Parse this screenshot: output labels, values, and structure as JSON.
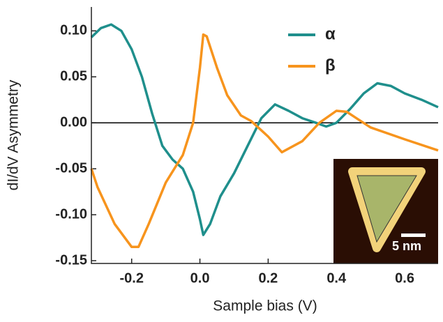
{
  "chart_data": {
    "type": "line",
    "x_label": "Sample bias (V)",
    "y_label": "dI/dV Asymmetry",
    "xlim": [
      -0.318,
      0.698
    ],
    "ylim": [
      -0.153,
      0.126
    ],
    "xticks": [
      -0.2,
      {
        "value": 0,
        "label": "0.0"
      },
      0.2,
      0.4,
      0.6
    ],
    "yticks": [
      {
        "value": 0.1,
        "label": "0.10"
      },
      0.05,
      {
        "value": 0,
        "label": "0.00"
      },
      -0.05,
      {
        "value": -0.1,
        "label": "-0.10"
      },
      -0.15
    ],
    "zero_line": true,
    "legend": "upper right",
    "annotations": [
      "5 nm"
    ],
    "series": [
      {
        "name": "α",
        "color": "#1f8f8c",
        "x": [
          -0.318,
          -0.29,
          -0.26,
          -0.23,
          -0.2,
          -0.17,
          -0.14,
          -0.11,
          -0.08,
          -0.05,
          -0.02,
          0.0,
          0.01,
          0.03,
          0.06,
          0.1,
          0.14,
          0.18,
          0.22,
          0.26,
          0.3,
          0.34,
          0.37,
          0.4,
          0.44,
          0.48,
          0.52,
          0.56,
          0.6,
          0.65,
          0.698
        ],
        "values": [
          0.093,
          0.103,
          0.107,
          0.1,
          0.08,
          0.05,
          0.01,
          -0.025,
          -0.04,
          -0.05,
          -0.075,
          -0.105,
          -0.122,
          -0.11,
          -0.08,
          -0.055,
          -0.025,
          0.005,
          0.02,
          0.013,
          0.005,
          0.0,
          -0.004,
          0.0,
          0.015,
          0.032,
          0.043,
          0.04,
          0.032,
          0.025,
          0.017
        ]
      },
      {
        "name": "β",
        "color": "#f7941d",
        "x": [
          -0.318,
          -0.3,
          -0.25,
          -0.2,
          -0.18,
          -0.15,
          -0.1,
          -0.05,
          -0.02,
          0.0,
          0.01,
          0.02,
          0.05,
          0.08,
          0.12,
          0.15,
          0.2,
          0.24,
          0.3,
          0.35,
          0.4,
          0.43,
          0.5,
          0.6,
          0.698
        ],
        "values": [
          -0.05,
          -0.07,
          -0.11,
          -0.135,
          -0.135,
          -0.11,
          -0.065,
          -0.035,
          0.0,
          0.06,
          0.096,
          0.094,
          0.06,
          0.03,
          0.008,
          0.002,
          -0.015,
          -0.032,
          -0.02,
          0.0,
          0.013,
          0.012,
          -0.005,
          -0.018,
          -0.03
        ]
      }
    ]
  }
}
